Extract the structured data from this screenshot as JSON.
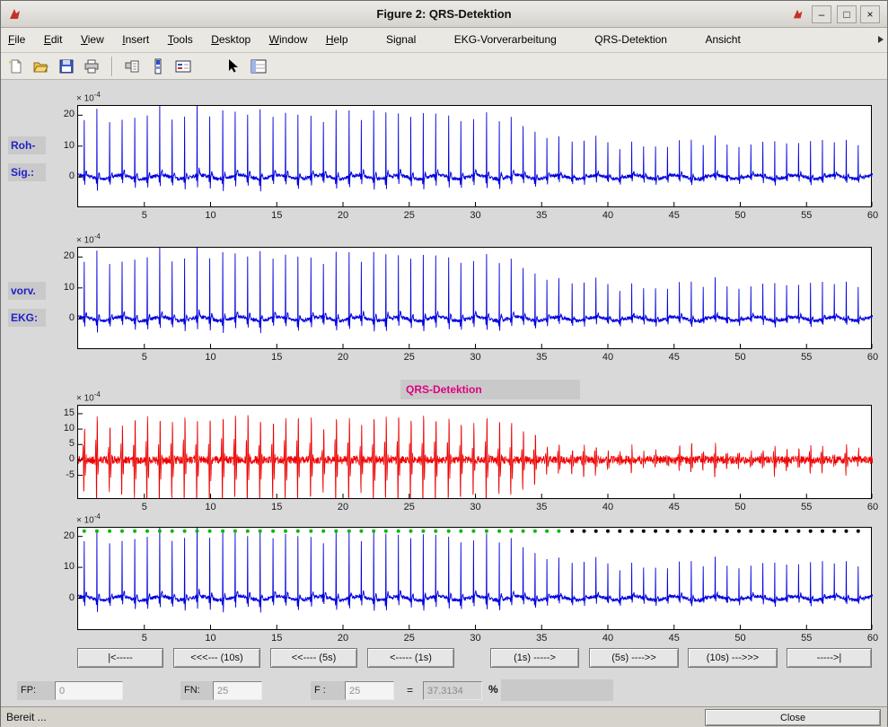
{
  "window": {
    "title": "Figure 2: QRS-Detektion",
    "controls": {
      "minimize": "–",
      "maximize": "□",
      "close": "×"
    }
  },
  "menubar": {
    "items": [
      {
        "label": "File"
      },
      {
        "label": "Edit"
      },
      {
        "label": "View"
      },
      {
        "label": "Insert"
      },
      {
        "label": "Tools"
      },
      {
        "label": "Desktop"
      },
      {
        "label": "Window"
      },
      {
        "label": "Help"
      },
      {
        "label": "Signal"
      },
      {
        "label": "EKG-Vorverarbeitung"
      },
      {
        "label": "QRS-Detektion"
      },
      {
        "label": "Ansicht"
      }
    ]
  },
  "toolbar": {
    "icons": [
      "new-file",
      "open-file",
      "save",
      "print",
      "print-preview",
      "colorbar",
      "legend",
      "edit-plot-cursor",
      "property-editor"
    ]
  },
  "plots": [
    {
      "name": "raw-signal",
      "side_labels": [
        "Roh-",
        "Sig.:"
      ],
      "exp_base": "× 10",
      "exp_power": "-4",
      "line_color": "#0000dd",
      "series": "ecg",
      "xticks": [
        "5",
        "10",
        "15",
        "20",
        "25",
        "30",
        "35",
        "40",
        "45",
        "50",
        "55",
        "60"
      ],
      "yticks": [
        "20",
        "10",
        "0"
      ],
      "ylim": [
        -9.5,
        23
      ]
    },
    {
      "name": "preprocessed-ecg",
      "side_labels": [
        "vorv.",
        "EKG:"
      ],
      "exp_base": "× 10",
      "exp_power": "-4",
      "line_color": "#0000dd",
      "series": "ecg",
      "xticks": [
        "5",
        "10",
        "15",
        "20",
        "25",
        "30",
        "35",
        "40",
        "45",
        "50",
        "55",
        "60"
      ],
      "yticks": [
        "20",
        "10",
        "0"
      ],
      "ylim": [
        -9.5,
        23
      ]
    },
    {
      "name": "qrs-detection",
      "title": "QRS-Detektion",
      "title_color": "#e00080",
      "exp_base": "× 10",
      "exp_power": "-4",
      "line_color": "#ee0000",
      "series": "filtered",
      "xticks": [
        "5",
        "10",
        "15",
        "20",
        "25",
        "30",
        "35",
        "40",
        "45",
        "50",
        "55",
        "60"
      ],
      "yticks": [
        "15",
        "10",
        "5",
        "0",
        "-5"
      ],
      "ylim": [
        -12.4,
        17.6
      ]
    },
    {
      "name": "detection-markers",
      "exp_base": "× 10",
      "exp_power": "-4",
      "line_color": "#0000dd",
      "series": "ecg",
      "xticks": [
        "5",
        "10",
        "15",
        "20",
        "25",
        "30",
        "35",
        "40",
        "45",
        "50",
        "55",
        "60"
      ],
      "yticks": [
        "20",
        "10",
        "0"
      ],
      "ylim": [
        -10,
        22.8
      ],
      "markers": {
        "detected_color": "#00bb00",
        "missed_color": "#000000",
        "marker_value": 21.7
      }
    }
  ],
  "signal": {
    "duration_s": 60,
    "early": {
      "start": 0.45,
      "interval": 0.95,
      "until": 31,
      "r_amplitude": 20
    },
    "transition": {
      "until": 36.6,
      "interval": 0.9,
      "amp_from": 20,
      "amp_to": 11
    },
    "late": {
      "start": 37.3,
      "interval": 0.9,
      "count": 25,
      "r_amplitude": 11
    }
  },
  "nav": {
    "buttons": [
      "|<-----",
      "<<<--- (10s)",
      "<<---- (5s)",
      "<----- (1s)",
      "(1s) ----->",
      "(5s) ---->>",
      "(10s) --->>>",
      "----->|"
    ]
  },
  "stats": {
    "fp_label": "FP:",
    "fp_value": "0",
    "fn_label": "FN:",
    "fn_value": "25",
    "f_label": "F :",
    "f_value": "25",
    "equals": "=",
    "f_measure": "37.3134",
    "percent": "%"
  },
  "statusbar": {
    "text": "Bereit ...",
    "close_label": "Close"
  }
}
